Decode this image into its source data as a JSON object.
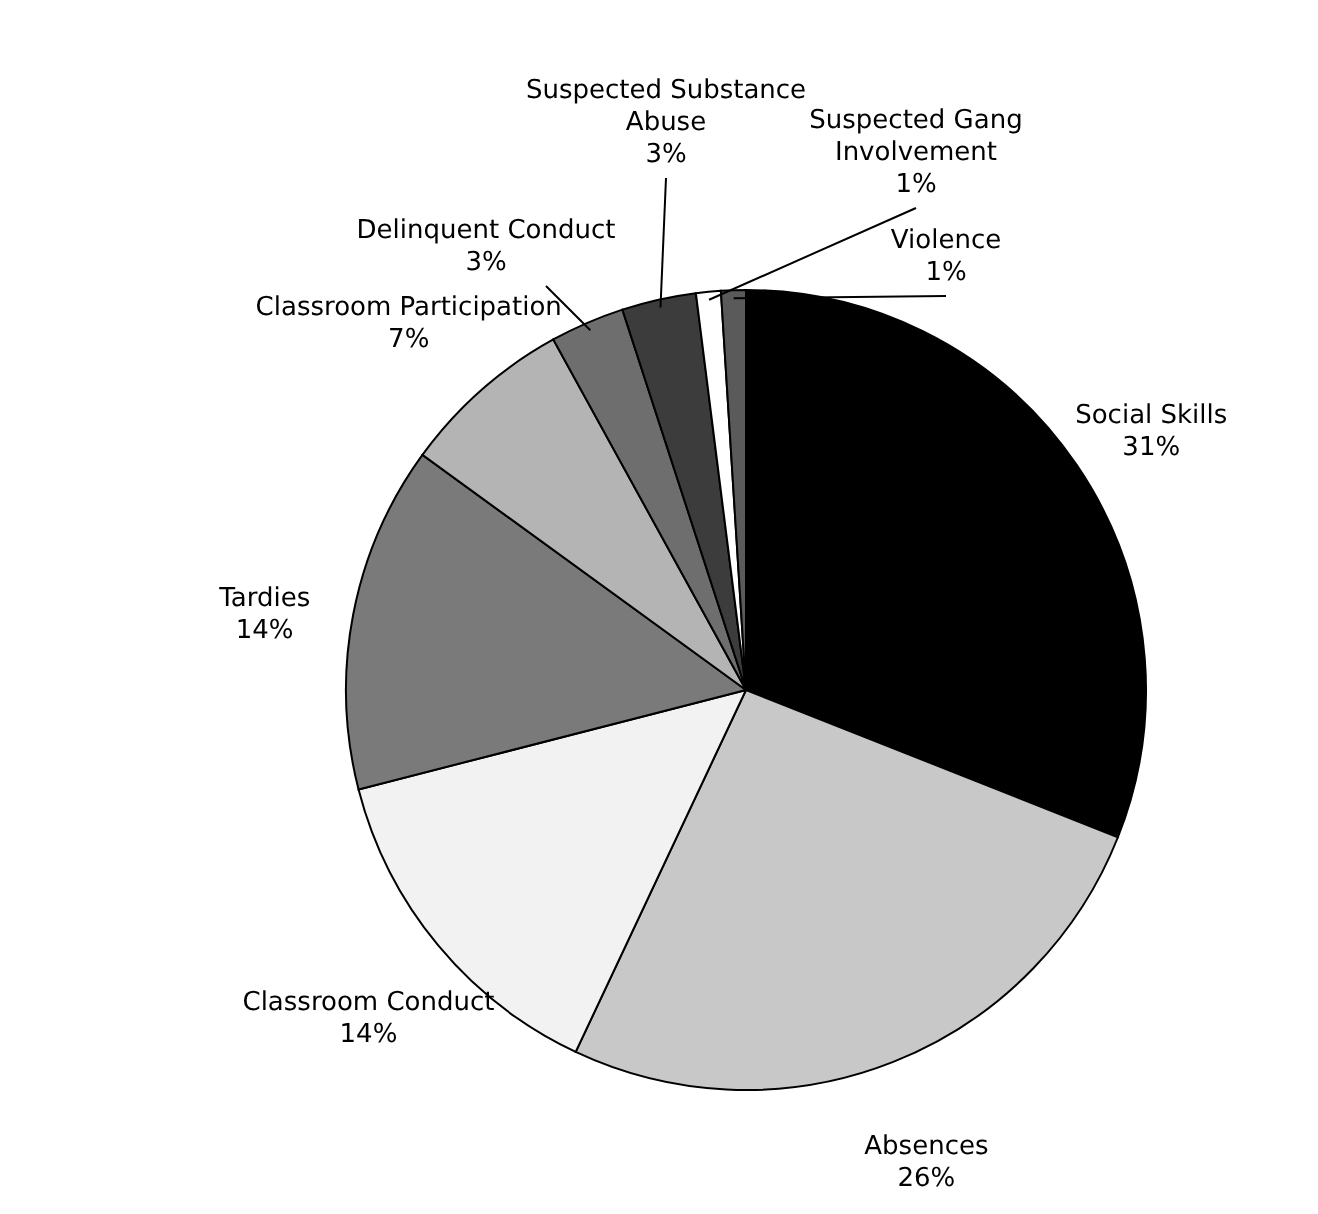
{
  "chart_data": {
    "type": "pie",
    "categories": [
      "Social Skills",
      "Absences",
      "Classroom Conduct",
      "Tardies",
      "Classroom Participation",
      "Delinquent Conduct",
      "Suspected Substance Abuse",
      "Suspected Gang Involvement",
      "Violence"
    ],
    "values": [
      31,
      26,
      14,
      14,
      7,
      3,
      3,
      1,
      1
    ],
    "value_labels": [
      "31%",
      "26%",
      "14%",
      "14%",
      "7%",
      "3%",
      "3%",
      "1%",
      "1%"
    ],
    "colors": [
      "#000000",
      "#c8c8c8",
      "#f2f2f2",
      "#7a7a7a",
      "#b4b4b4",
      "#6e6e6e",
      "#3c3c3c",
      "#ffffff",
      "#5a5a5a"
    ]
  }
}
